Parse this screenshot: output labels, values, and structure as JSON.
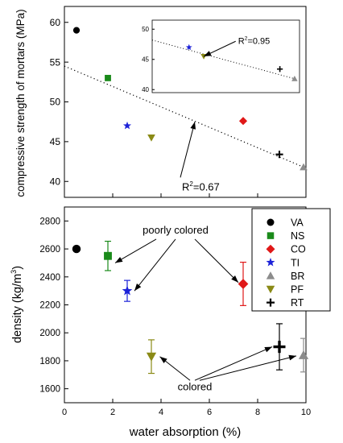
{
  "chart_data": [
    {
      "type": "scatter",
      "title": "",
      "ylabel": "compressive strength of mortars (MPa)",
      "xlabel": "",
      "xlim": [
        0,
        10
      ],
      "ylim": [
        38,
        62
      ],
      "yticks": [
        40,
        45,
        50,
        55,
        60
      ],
      "grid": false,
      "points": [
        {
          "series": "VA",
          "x": 0.5,
          "y": 59.0
        },
        {
          "series": "NS",
          "x": 1.8,
          "y": 53.0
        },
        {
          "series": "TI",
          "x": 2.6,
          "y": 47.0
        },
        {
          "series": "PF",
          "x": 3.6,
          "y": 45.5
        },
        {
          "series": "CO",
          "x": 7.4,
          "y": 47.6
        },
        {
          "series": "RT",
          "x": 8.9,
          "y": 43.4
        },
        {
          "series": "BR",
          "x": 9.9,
          "y": 41.8
        }
      ],
      "trendline": {
        "style": "dotted",
        "x": [
          0,
          9.9
        ],
        "y": [
          54.5,
          41.8
        ]
      },
      "annotation": {
        "text_main": "R",
        "text_sup": "2",
        "text_tail": "=0.67",
        "arrow_to": {
          "x": 5.4,
          "y": 47.5
        },
        "arrow_from": {
          "x": 4.8,
          "y": 40.5
        }
      }
    },
    {
      "type": "scatter",
      "title": "",
      "inset": true,
      "xlim": [
        4.0,
        10.0
      ],
      "ylim": [
        39.5,
        51.5
      ],
      "yticks": [
        40,
        45,
        50
      ],
      "points": [
        {
          "series": "TI",
          "x": 5.5,
          "y": 47.0
        },
        {
          "series": "PF",
          "x": 6.1,
          "y": 45.5
        },
        {
          "series": "RT",
          "x": 9.2,
          "y": 43.4
        },
        {
          "series": "BR",
          "x": 9.8,
          "y": 41.8
        }
      ],
      "trendline": {
        "style": "dotted",
        "x": [
          4.0,
          9.8
        ],
        "y": [
          48.2,
          41.8
        ]
      },
      "annotation": {
        "text_main": "R",
        "text_sup": "2",
        "text_tail": "=0.95",
        "arrow_to": {
          "x": 6.1,
          "y": 45.5
        },
        "arrow_from": {
          "x": 7.4,
          "y": 48.0
        }
      }
    },
    {
      "type": "scatter",
      "title": "",
      "xlabel": "water absorption (%)",
      "ylabel_main": "density (kg/m",
      "ylabel_sup": "3",
      "ylabel_tail": ")",
      "xlim": [
        0,
        10
      ],
      "ylim": [
        1500,
        2900
      ],
      "xticks": [
        0,
        2,
        4,
        6,
        8,
        10
      ],
      "yticks": [
        1600,
        1800,
        2000,
        2200,
        2400,
        2600,
        2800
      ],
      "grid": false,
      "points": [
        {
          "series": "VA",
          "x": 0.5,
          "y": 2600,
          "err": 0
        },
        {
          "series": "NS",
          "x": 1.8,
          "y": 2550,
          "err": 105
        },
        {
          "series": "TI",
          "x": 2.6,
          "y": 2300,
          "err": 75
        },
        {
          "series": "PF",
          "x": 3.6,
          "y": 1830,
          "err": 120
        },
        {
          "series": "CO",
          "x": 7.4,
          "y": 2350,
          "err": 155
        },
        {
          "series": "RT",
          "x": 8.9,
          "y": 1900,
          "err": 165
        },
        {
          "series": "BR",
          "x": 9.9,
          "y": 1840,
          "err": 120
        }
      ],
      "labels": [
        {
          "text": "poorly colored",
          "x": 4.6,
          "y": 2710
        },
        {
          "text": "colored",
          "x": 5.4,
          "y": 1590
        }
      ],
      "arrows": [
        {
          "from": {
            "x": 3.8,
            "y": 2670
          },
          "to": {
            "x": 2.1,
            "y": 2500
          }
        },
        {
          "from": {
            "x": 4.6,
            "y": 2670
          },
          "to": {
            "x": 2.9,
            "y": 2300
          }
        },
        {
          "from": {
            "x": 5.4,
            "y": 2670
          },
          "to": {
            "x": 7.2,
            "y": 2360
          }
        },
        {
          "from": {
            "x": 5.2,
            "y": 1660
          },
          "to": {
            "x": 3.95,
            "y": 1830
          }
        },
        {
          "from": {
            "x": 5.4,
            "y": 1660
          },
          "to": {
            "x": 8.6,
            "y": 1900
          }
        },
        {
          "from": {
            "x": 5.6,
            "y": 1660
          },
          "to": {
            "x": 9.6,
            "y": 1835
          }
        }
      ]
    }
  ],
  "legend": {
    "placement": "upper-right of lower panel",
    "entries": [
      {
        "series": "VA",
        "label": "VA",
        "marker": "circle",
        "color": "#000000"
      },
      {
        "series": "NS",
        "label": "NS",
        "marker": "square",
        "color": "#1a8a1a"
      },
      {
        "series": "CO",
        "label": "CO",
        "marker": "diamond",
        "color": "#e01818"
      },
      {
        "series": "TI",
        "label": "TI",
        "marker": "star",
        "color": "#1c22d8"
      },
      {
        "series": "BR",
        "label": "BR",
        "marker": "triangle-up",
        "color": "#8c8c8c"
      },
      {
        "series": "PF",
        "label": "PF",
        "marker": "triangle-down",
        "color": "#8a8a16"
      },
      {
        "series": "RT",
        "label": "RT",
        "marker": "plus",
        "color": "#000000"
      }
    ]
  }
}
